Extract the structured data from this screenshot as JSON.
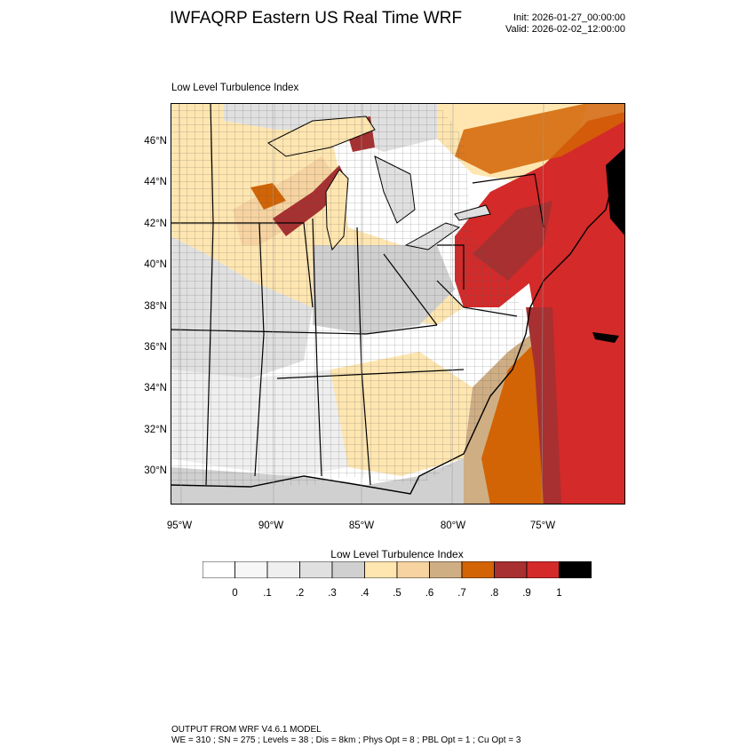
{
  "header": {
    "title": "IWFAQRP Eastern US Real Time WRF",
    "init": "Init: 2026-01-27_00:00:00",
    "valid": "Valid: 2026-02-02_12:00:00"
  },
  "map": {
    "title": "Low Level Turbulence Index",
    "lat_labels": [
      "46°N",
      "44°N",
      "42°N",
      "40°N",
      "38°N",
      "36°N",
      "34°N",
      "32°N",
      "30°N"
    ],
    "lon_labels": [
      "95°W",
      "90°W",
      "85°W",
      "80°W",
      "75°W"
    ]
  },
  "colorbar": {
    "title": "Low Level Turbulence Index",
    "labels": [
      "0",
      ".1",
      ".2",
      ".3",
      ".4",
      ".5",
      ".6",
      ".7",
      ".8",
      ".9",
      "1"
    ],
    "colors": [
      "#ffffff",
      "#f7f7f7",
      "#efefef",
      "#e0e0e0",
      "#d0d0d0",
      "#ffe6b0",
      "#f6d3a0",
      "#cfae84",
      "#d26405",
      "#a83030",
      "#d42a2a",
      "#000000"
    ]
  },
  "footer": {
    "line1": "OUTPUT FROM WRF V4.6.1 MODEL",
    "line2": "WE = 310 ; SN = 275 ; Levels = 38 ; Dis = 8km ; Phys Opt = 8 ; PBL Opt = 1 ; Cu Opt = 3"
  }
}
